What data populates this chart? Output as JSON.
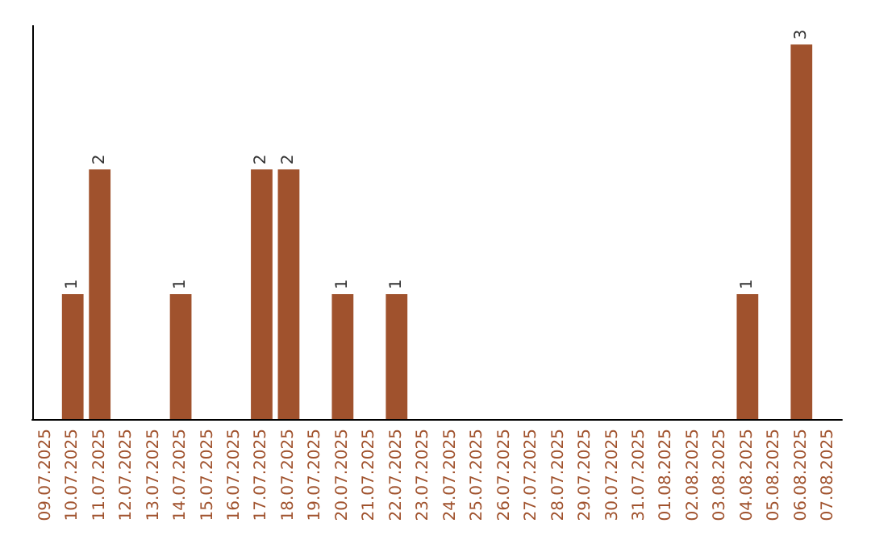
{
  "chart_data": {
    "type": "bar",
    "categories": [
      "09.07.2025",
      "10.07.2025",
      "11.07.2025",
      "12.07.2025",
      "13.07.2025",
      "14.07.2025",
      "15.07.2025",
      "16.07.2025",
      "17.07.2025",
      "18.07.2025",
      "19.07.2025",
      "20.07.2025",
      "21.07.2025",
      "22.07.2025",
      "23.07.2025",
      "24.07.2025",
      "25.07.2025",
      "26.07.2025",
      "27.07.2025",
      "28.07.2025",
      "29.07.2025",
      "30.07.2025",
      "31.07.2025",
      "01.08.2025",
      "02.08.2025",
      "03.08.2025",
      "04.08.2025",
      "05.08.2025",
      "06.08.2025",
      "07.08.2025"
    ],
    "values": [
      0,
      1,
      2,
      0,
      0,
      1,
      0,
      0,
      2,
      2,
      0,
      1,
      0,
      1,
      0,
      0,
      0,
      0,
      0,
      0,
      0,
      0,
      0,
      0,
      0,
      0,
      1,
      0,
      3,
      0
    ],
    "value_labels": [
      null,
      "1",
      "2",
      null,
      null,
      "1",
      null,
      null,
      "2",
      "2",
      null,
      "1",
      null,
      "1",
      null,
      null,
      null,
      null,
      null,
      null,
      null,
      null,
      null,
      null,
      null,
      null,
      "1",
      null,
      "3",
      null
    ],
    "color": "#a0522d",
    "grid": false,
    "tick_labels": "x"
  }
}
